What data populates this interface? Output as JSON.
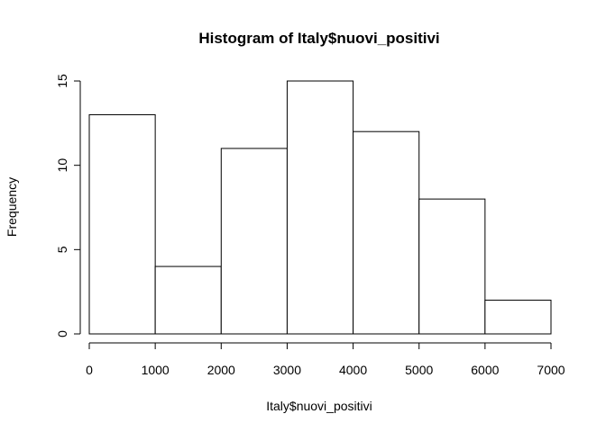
{
  "chart_data": {
    "type": "bar",
    "title": "Histogram of Italy$nuovi_positivi",
    "xlabel": "Italy$nuovi_positivi",
    "ylabel": "Frequency",
    "bins": [
      {
        "start": 0,
        "end": 1000,
        "count": 13
      },
      {
        "start": 1000,
        "end": 2000,
        "count": 4
      },
      {
        "start": 2000,
        "end": 3000,
        "count": 11
      },
      {
        "start": 3000,
        "end": 4000,
        "count": 15
      },
      {
        "start": 4000,
        "end": 5000,
        "count": 12
      },
      {
        "start": 5000,
        "end": 6000,
        "count": 8
      },
      {
        "start": 6000,
        "end": 7000,
        "count": 2
      }
    ],
    "xlim": [
      0,
      7000
    ],
    "ylim": [
      0,
      15
    ],
    "xticks": [
      "0",
      "1000",
      "2000",
      "3000",
      "4000",
      "5000",
      "6000",
      "7000"
    ],
    "yticks": [
      "0",
      "5",
      "10",
      "15"
    ],
    "grid": false,
    "legend": "none"
  }
}
